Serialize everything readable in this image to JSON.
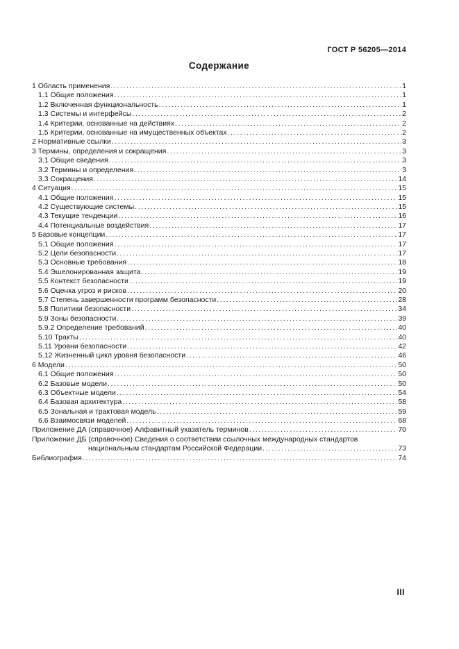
{
  "header": {
    "standard_code": "ГОСТ Р 56205—2014"
  },
  "title": "Содержание",
  "toc": {
    "entries": [
      {
        "title": "1 Область применения",
        "page": "1",
        "level": 0
      },
      {
        "title": "1.1 Общие положения ",
        "page": "1",
        "level": 1
      },
      {
        "title": "1.2 Включенная функциональность ",
        "page": "1",
        "level": 1
      },
      {
        "title": "1.3 Системы и интерфейсы ",
        "page": "2",
        "level": 1
      },
      {
        "title": "1.4 Критерии, основанные на действиях ",
        "page": "2",
        "level": 1
      },
      {
        "title": "1.5 Критерии, основанные на имущественных объектах ",
        "page": "2",
        "level": 1
      },
      {
        "title": "2 Нормативные ссылки",
        "page": "3",
        "level": 0
      },
      {
        "title": "3 Термины, определения и сокращения ",
        "page": "3",
        "level": 0
      },
      {
        "title": "3.1 Общие сведения ",
        "page": "3",
        "level": 1
      },
      {
        "title": "3.2 Термины и определения",
        "page": "3",
        "level": 1
      },
      {
        "title": "3.3 Сокращения",
        "page": "14",
        "level": 1
      },
      {
        "title": "4 Ситуация",
        "page": "15",
        "level": 0
      },
      {
        "title": "4.1 Общие положения ",
        "page": "15",
        "level": 1
      },
      {
        "title": "4.2 Существующие системы ",
        "page": "15",
        "level": 1
      },
      {
        "title": "4.3 Текущие тенденции ",
        "page": "16",
        "level": 1
      },
      {
        "title": "4.4 Потенциальные воздействия",
        "page": "17",
        "level": 1
      },
      {
        "title": "5 Базовые концепции",
        "page": "17",
        "level": 0
      },
      {
        "title": "5.1 Общие положения ",
        "page": "17",
        "level": 1
      },
      {
        "title": "5.2 Цели безопасности ",
        "page": "17",
        "level": 1
      },
      {
        "title": "5.3 Основные требования ",
        "page": "18",
        "level": 1
      },
      {
        "title": "5.4 Эшелонированная защита ",
        "page": "19",
        "level": 1
      },
      {
        "title": "5.5 Контекст безопасности ",
        "page": "19",
        "level": 1
      },
      {
        "title": "5.6 Оценка угроз и рисков ",
        "page": "20",
        "level": 1
      },
      {
        "title": "5.7 Степень завершенности программ безопасности ",
        "page": "28",
        "level": 1
      },
      {
        "title": "5.8 Политики безопасности",
        "page": "34",
        "level": 1
      },
      {
        "title": "5.9 Зоны безопасности ",
        "page": "39",
        "level": 1
      },
      {
        "title": "5.9.2 Определение требований ",
        "page": "40",
        "level": 1
      },
      {
        "title": "5.10 Тракты",
        "page": "40",
        "level": 1
      },
      {
        "title": "5.11 Уровни безопасности",
        "page": "42",
        "level": 1
      },
      {
        "title": "5.12 Жизненный цикл уровня безопасности",
        "page": "46",
        "level": 1
      },
      {
        "title": "6 Модели",
        "page": "50",
        "level": 0
      },
      {
        "title": "6.1 Общие положения ",
        "page": "50",
        "level": 1
      },
      {
        "title": "6.2 Базовые модели",
        "page": "50",
        "level": 1
      },
      {
        "title": "6.3 Объектные модели ",
        "page": "54",
        "level": 1
      },
      {
        "title": "6.4 Базовая архитектура ",
        "page": "58",
        "level": 1
      },
      {
        "title": "6.5 Зональная и трактовая модель ",
        "page": "59",
        "level": 1
      },
      {
        "title": "6.6 Взаимосвязи моделей ",
        "page": "68",
        "level": 1
      },
      {
        "title": "Приложение ДА (справочное) Алфавитный указатель терминов ",
        "page": "70",
        "level": 0
      },
      {
        "title": "Приложение ДБ (справочное) Сведения о соответствии ссылочных международных стандартов",
        "page": "",
        "level": 0
      },
      {
        "title": "национальным стандартам Российской Федерации",
        "page": "73",
        "level": 2
      },
      {
        "title": "Библиография ",
        "page": "74",
        "level": 0
      }
    ]
  },
  "footer": {
    "page_number": "III"
  }
}
